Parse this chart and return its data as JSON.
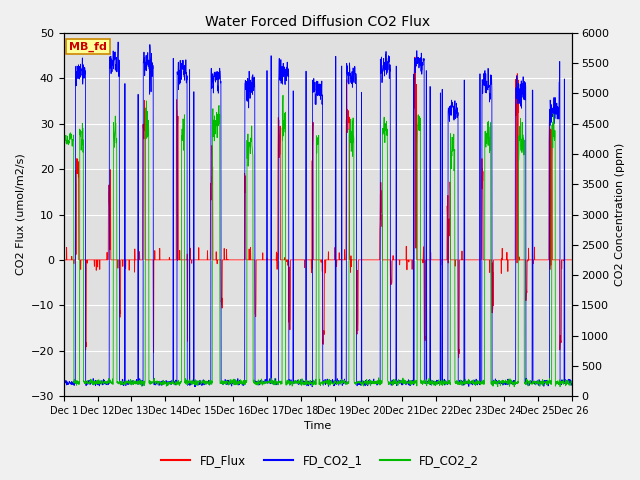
{
  "title": "Water Forced Diffusion CO2 Flux",
  "xlabel": "Time",
  "ylabel_left": "CO2 Flux (umol/m2/s)",
  "ylabel_right": "CO2 Concentration (ppm)",
  "ylim_left": [
    -30,
    50
  ],
  "ylim_right": [
    0,
    6000
  ],
  "yticks_left": [
    -30,
    -20,
    -10,
    0,
    10,
    20,
    30,
    40,
    50
  ],
  "yticks_right": [
    0,
    500,
    1000,
    1500,
    2000,
    2500,
    3000,
    3500,
    4000,
    4500,
    5000,
    5500,
    6000
  ],
  "n_days": 15,
  "xtick_labels": [
    "Dec 1",
    "Dec 12",
    "Dec 13",
    "Dec 14",
    "Dec 15",
    "Dec 16",
    "Dec 17",
    "Dec 18",
    "Dec 19",
    "Dec 20",
    "Dec 21",
    "Dec 22",
    "Dec 23",
    "Dec 24",
    "Dec 25",
    "Dec 26"
  ],
  "legend_entries": [
    "FD_Flux",
    "FD_CO2_1",
    "FD_CO2_2"
  ],
  "legend_colors": [
    "#ff0000",
    "#0000ff",
    "#00bb00"
  ],
  "annotation_text": "MB_fd",
  "annotation_bg": "#ffff99",
  "annotation_border": "#cc8800",
  "annotation_text_color": "#cc0000",
  "flux_color": "#ff0000",
  "co2_1_color": "#0000ff",
  "co2_2_color": "#00bb00",
  "fig_bg_color": "#f0f0f0",
  "plot_bg_color": "#e0e0e0",
  "grid_color": "#ffffff"
}
